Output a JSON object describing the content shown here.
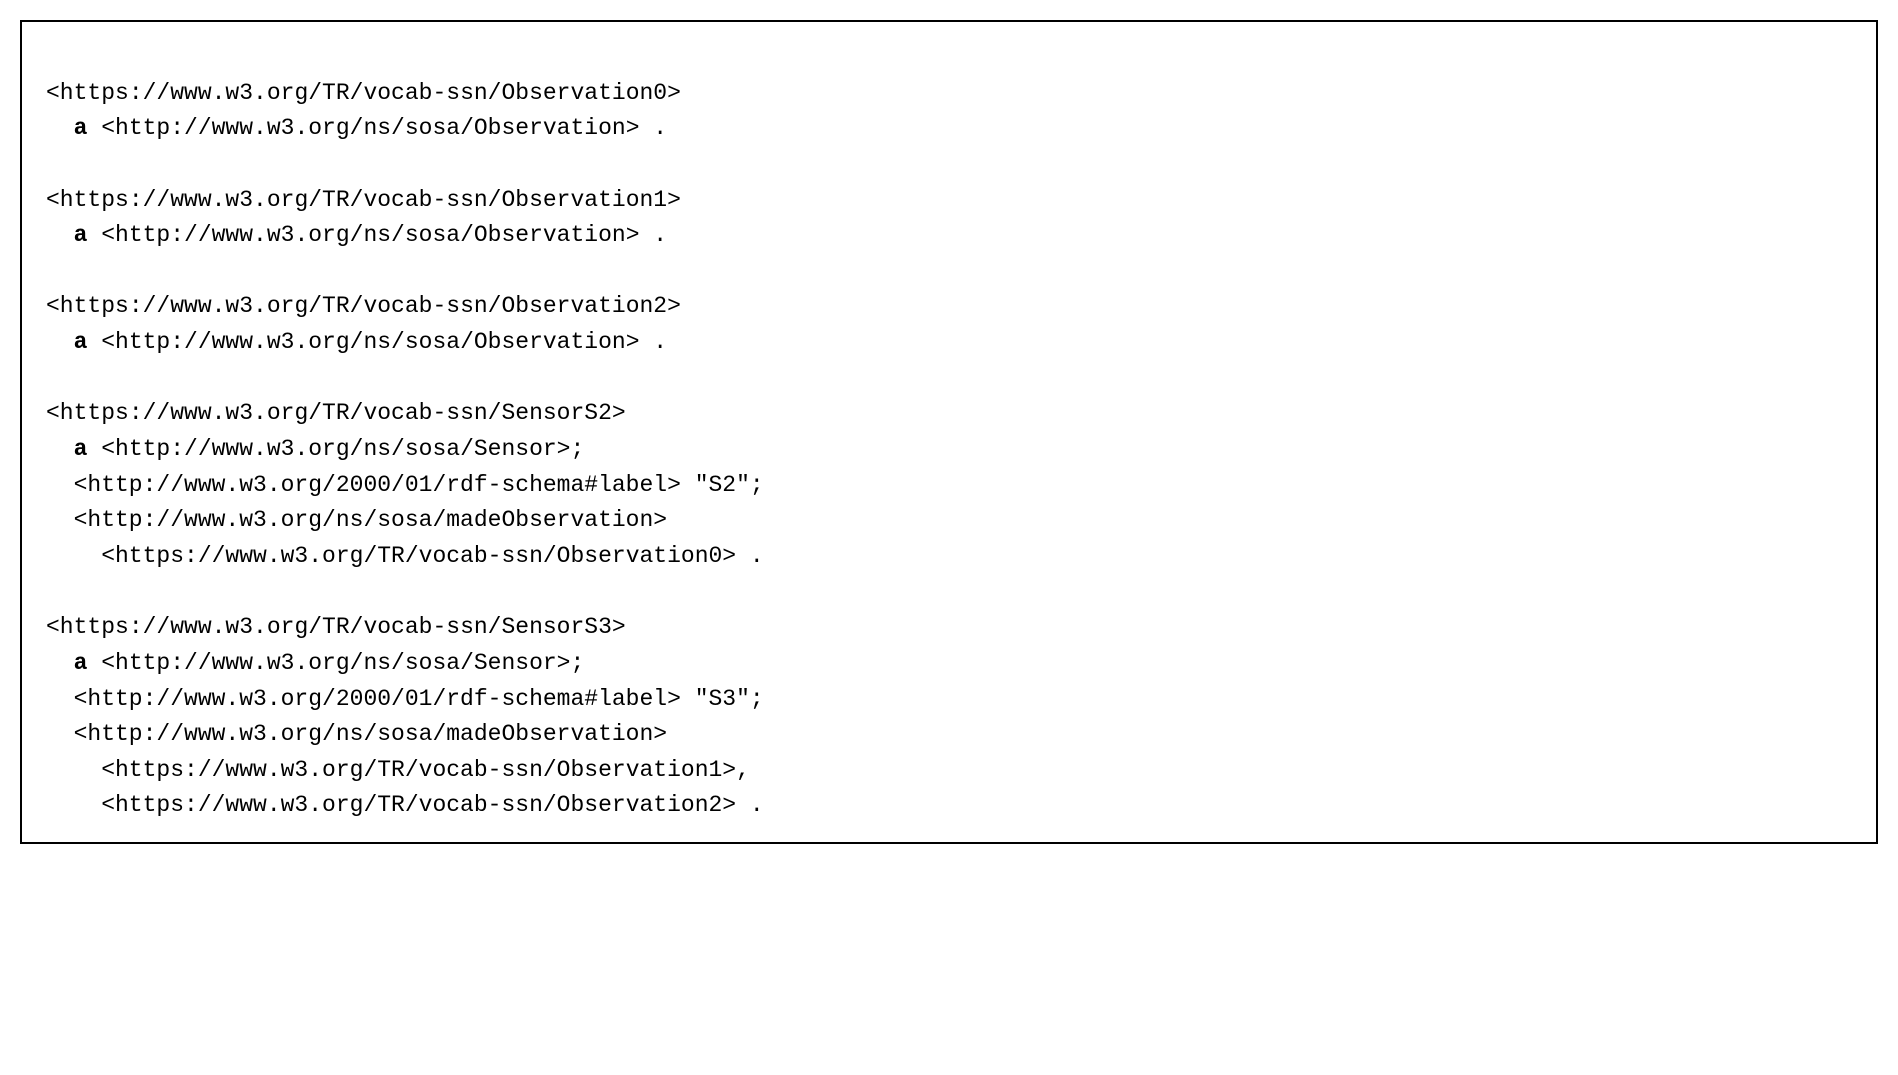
{
  "rdf": {
    "obs0_subject": "<https://www.w3.org/TR/vocab-ssn/Observation0>",
    "obs0_a": "a",
    "obs0_type": " <http://www.w3.org/ns/sosa/Observation> .",
    "obs1_subject": "<https://www.w3.org/TR/vocab-ssn/Observation1>",
    "obs1_a": "a",
    "obs1_type": " <http://www.w3.org/ns/sosa/Observation> .",
    "obs2_subject": "<https://www.w3.org/TR/vocab-ssn/Observation2>",
    "obs2_a": "a",
    "obs2_type": " <http://www.w3.org/ns/sosa/Observation> .",
    "s2_subject": "<https://www.w3.org/TR/vocab-ssn/SensorS2>",
    "s2_a": "a",
    "s2_type": " <http://www.w3.org/ns/sosa/Sensor>;",
    "s2_label": "<http://www.w3.org/2000/01/rdf-schema#label> \"S2\";",
    "s2_madeObs": "<http://www.w3.org/ns/sosa/madeObservation>",
    "s2_obs_val": "<https://www.w3.org/TR/vocab-ssn/Observation0> .",
    "s3_subject": "<https://www.w3.org/TR/vocab-ssn/SensorS3>",
    "s3_a": "a",
    "s3_type": " <http://www.w3.org/ns/sosa/Sensor>;",
    "s3_label": "<http://www.w3.org/2000/01/rdf-schema#label> \"S3\";",
    "s3_madeObs": "<http://www.w3.org/ns/sosa/madeObservation>",
    "s3_obs_val1": "<https://www.w3.org/TR/vocab-ssn/Observation1>,",
    "s3_obs_val2": "<https://www.w3.org/TR/vocab-ssn/Observation2> ."
  }
}
